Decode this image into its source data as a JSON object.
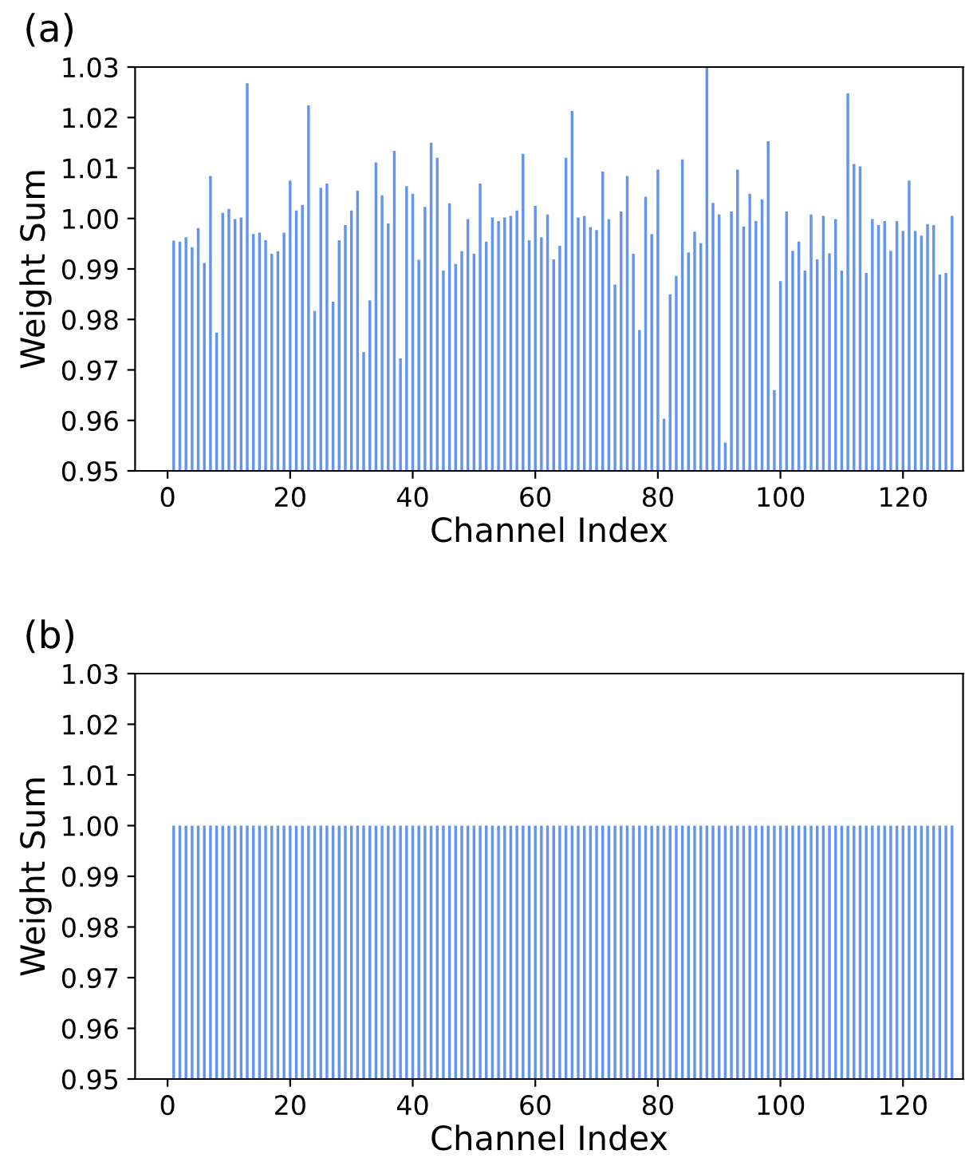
{
  "chart_data": [
    {
      "type": "bar",
      "title": "(a)",
      "xlabel": "Channel Index",
      "ylabel": "Weight Sum",
      "x": [
        1,
        2,
        3,
        4,
        5,
        6,
        7,
        8,
        9,
        10,
        11,
        12,
        13,
        14,
        15,
        16,
        17,
        18,
        19,
        20,
        21,
        22,
        23,
        24,
        25,
        26,
        27,
        28,
        29,
        30,
        31,
        32,
        33,
        34,
        35,
        36,
        37,
        38,
        39,
        40,
        41,
        42,
        43,
        44,
        45,
        46,
        47,
        48,
        49,
        50,
        51,
        52,
        53,
        54,
        55,
        56,
        57,
        58,
        59,
        60,
        61,
        62,
        63,
        64,
        65,
        66,
        67,
        68,
        69,
        70,
        71,
        72,
        73,
        74,
        75,
        76,
        77,
        78,
        79,
        80,
        81,
        82,
        83,
        84,
        85,
        86,
        87,
        88,
        89,
        90,
        91,
        92,
        93,
        94,
        95,
        96,
        97,
        98,
        99,
        100,
        101,
        102,
        103,
        104,
        105,
        106,
        107,
        108,
        109,
        110,
        111,
        112,
        113,
        114,
        115,
        116,
        117,
        118,
        119,
        120,
        121,
        122,
        123,
        124,
        125,
        126,
        127,
        128
      ],
      "series": [
        {
          "color": "#6495ed",
          "values": [
            0.9956,
            0.9954,
            0.9963,
            0.9943,
            0.9981,
            0.9912,
            1.0084,
            0.9774,
            1.0011,
            1.0019,
            0.9999,
            1.0002,
            1.0268,
            0.9969,
            0.9972,
            0.9957,
            0.993,
            0.9935,
            0.9972,
            1.0075,
            1.0016,
            1.0027,
            1.0224,
            0.9817,
            1.0061,
            1.0069,
            0.9835,
            0.9957,
            0.9987,
            1.0016,
            1.0055,
            0.9735,
            0.9838,
            1.0111,
            1.0046,
            0.999,
            1.0134,
            0.9723,
            1.0064,
            1.0049,
            0.9918,
            1.0023,
            1.015,
            1.012,
            0.9897,
            1.003,
            0.991,
            0.9935,
            0.9999,
            0.993,
            1.0069,
            0.9954,
            1.0002,
            0.9995,
            1.0002,
            1.0005,
            1.0016,
            1.0128,
            0.9957,
            1.0025,
            0.9963,
            1.0008,
            0.9919,
            0.9946,
            1.012,
            1.0213,
            1.0002,
            1.0005,
            0.9983,
            0.9977,
            1.0093,
            0.9999,
            0.9869,
            1.0014,
            1.0084,
            0.993,
            0.9779,
            1.0043,
            0.9969,
            1.0097,
            0.9603,
            0.985,
            0.9886,
            1.0117,
            0.9933,
            0.9974,
            0.9951,
            1.03,
            1.0031,
            1.0008,
            0.9556,
            1.0014,
            1.0097,
            0.9984,
            1.0049,
            0.9995,
            1.0038,
            1.0153,
            0.966,
            0.9876,
            1.0014,
            0.9936,
            0.9954,
            0.9897,
            1.0008,
            0.9919,
            1.0005,
            0.9931,
            0.9999,
            0.9897,
            1.0248,
            1.0108,
            1.0103,
            0.9892,
            0.9999,
            0.9987,
            0.9995,
            0.9936,
            0.9995,
            0.9975,
            1.0075,
            0.9975,
            0.9966,
            0.9989,
            0.9987,
            0.9889,
            0.9892,
            1.0005
          ]
        }
      ],
      "xlim": [
        -5.3,
        129.8
      ],
      "xticks": [
        0,
        20,
        40,
        60,
        80,
        100,
        120
      ],
      "ylim": [
        0.95,
        1.03
      ],
      "yticks": [
        0.95,
        0.96,
        0.97,
        0.98,
        0.99,
        {
          "value": 1.0,
          "label": "1.00"
        },
        1.01,
        1.02,
        1.03
      ]
    },
    {
      "type": "bar",
      "title": "(b)",
      "xlabel": "Channel Index",
      "ylabel": "Weight Sum",
      "x": [
        1,
        2,
        3,
        4,
        5,
        6,
        7,
        8,
        9,
        10,
        11,
        12,
        13,
        14,
        15,
        16,
        17,
        18,
        19,
        20,
        21,
        22,
        23,
        24,
        25,
        26,
        27,
        28,
        29,
        30,
        31,
        32,
        33,
        34,
        35,
        36,
        37,
        38,
        39,
        40,
        41,
        42,
        43,
        44,
        45,
        46,
        47,
        48,
        49,
        50,
        51,
        52,
        53,
        54,
        55,
        56,
        57,
        58,
        59,
        60,
        61,
        62,
        63,
        64,
        65,
        66,
        67,
        68,
        69,
        70,
        71,
        72,
        73,
        74,
        75,
        76,
        77,
        78,
        79,
        80,
        81,
        82,
        83,
        84,
        85,
        86,
        87,
        88,
        89,
        90,
        91,
        92,
        93,
        94,
        95,
        96,
        97,
        98,
        99,
        100,
        101,
        102,
        103,
        104,
        105,
        106,
        107,
        108,
        109,
        110,
        111,
        112,
        113,
        114,
        115,
        116,
        117,
        118,
        119,
        120,
        121,
        122,
        123,
        124,
        125,
        126,
        127,
        128
      ],
      "series": [
        {
          "color": "#6495ed",
          "values": [
            1,
            1,
            1,
            1,
            1,
            1,
            1,
            1,
            1,
            1,
            1,
            1,
            1,
            1,
            1,
            1,
            1,
            1,
            1,
            1,
            1,
            1,
            1,
            1,
            1,
            1,
            1,
            1,
            1,
            1,
            1,
            1,
            1,
            1,
            1,
            1,
            1,
            1,
            1,
            1,
            1,
            1,
            1,
            1,
            1,
            1,
            1,
            1,
            1,
            1,
            1,
            1,
            1,
            1,
            1,
            1,
            1,
            1,
            1,
            1,
            1,
            1,
            1,
            1,
            1,
            1,
            1,
            1,
            1,
            1,
            1,
            1,
            1,
            1,
            1,
            1,
            1,
            1,
            1,
            1,
            1,
            1,
            1,
            1,
            1,
            1,
            1,
            1,
            1,
            1,
            1,
            1,
            1,
            1,
            1,
            1,
            1,
            1,
            1,
            1,
            1,
            1,
            1,
            1,
            1,
            1,
            1,
            1,
            1,
            1,
            1,
            1,
            1,
            1,
            1,
            1,
            1,
            1,
            1,
            1,
            1,
            1,
            1,
            1,
            1,
            1,
            1,
            1
          ]
        }
      ],
      "xlim": [
        -5.3,
        129.8
      ],
      "xticks": [
        0,
        20,
        40,
        60,
        80,
        100,
        120
      ],
      "ylim": [
        0.95,
        1.03
      ],
      "yticks": [
        0.95,
        0.96,
        0.97,
        0.98,
        0.99,
        {
          "value": 1.0,
          "label": "1.00"
        },
        1.01,
        1.02,
        1.03
      ]
    }
  ]
}
